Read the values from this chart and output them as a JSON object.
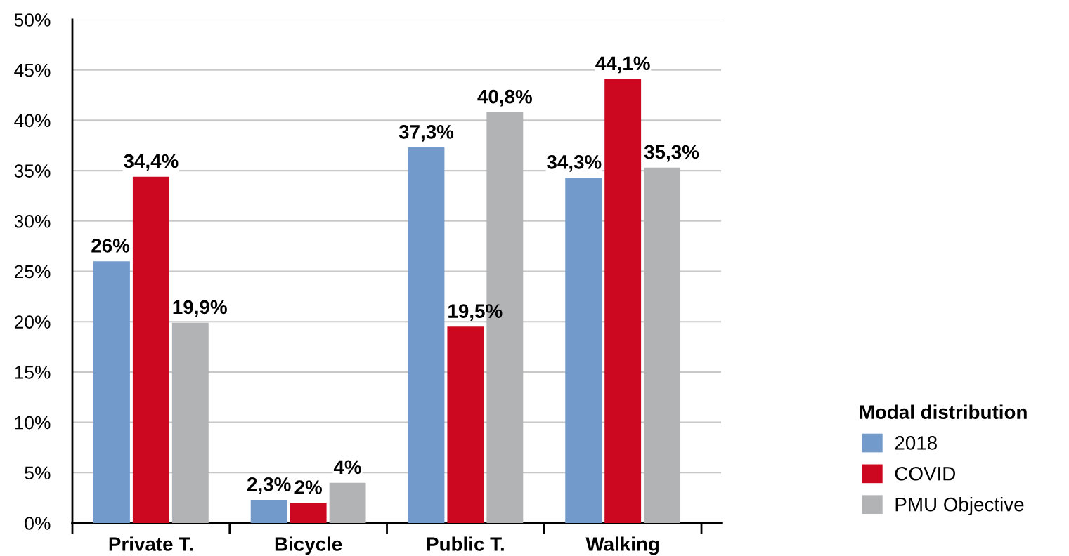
{
  "chart_data": {
    "type": "bar",
    "categories": [
      "Private T.",
      "Bicycle",
      "Public T.",
      "Walking"
    ],
    "series": [
      {
        "name": "2018",
        "color": "#729bcb",
        "values": [
          26,
          2.3,
          37.3,
          34.3
        ],
        "value_labels": [
          "26%",
          "2,3%",
          "37,3%",
          "34,3%"
        ]
      },
      {
        "name": "COVID",
        "color": "#cc0820",
        "values": [
          34.4,
          2,
          19.5,
          44.1
        ],
        "value_labels": [
          "34,4%",
          "2%",
          "19,5%",
          "44,1%"
        ]
      },
      {
        "name": "PMU Objective",
        "color": "#b2b3b5",
        "values": [
          19.9,
          4,
          40.8,
          35.3
        ],
        "value_labels": [
          "19,9%",
          "4%",
          "40,8%",
          "35,3%"
        ]
      }
    ],
    "ylim": [
      0,
      50
    ],
    "yticks": [
      {
        "value": 0,
        "label": "0%"
      },
      {
        "value": 5,
        "label": "5%"
      },
      {
        "value": 10,
        "label": "10%"
      },
      {
        "value": 15,
        "label": "15%"
      },
      {
        "value": 20,
        "label": "20%"
      },
      {
        "value": 25,
        "label": "25%"
      },
      {
        "value": 30,
        "label": "30%"
      },
      {
        "value": 35,
        "label": "35%"
      },
      {
        "value": 40,
        "label": "40%"
      },
      {
        "value": 45,
        "label": "45%"
      },
      {
        "value": 50,
        "label": "50%"
      }
    ],
    "grid": "y",
    "legend": "right",
    "legend_title": "Modal distribution"
  }
}
